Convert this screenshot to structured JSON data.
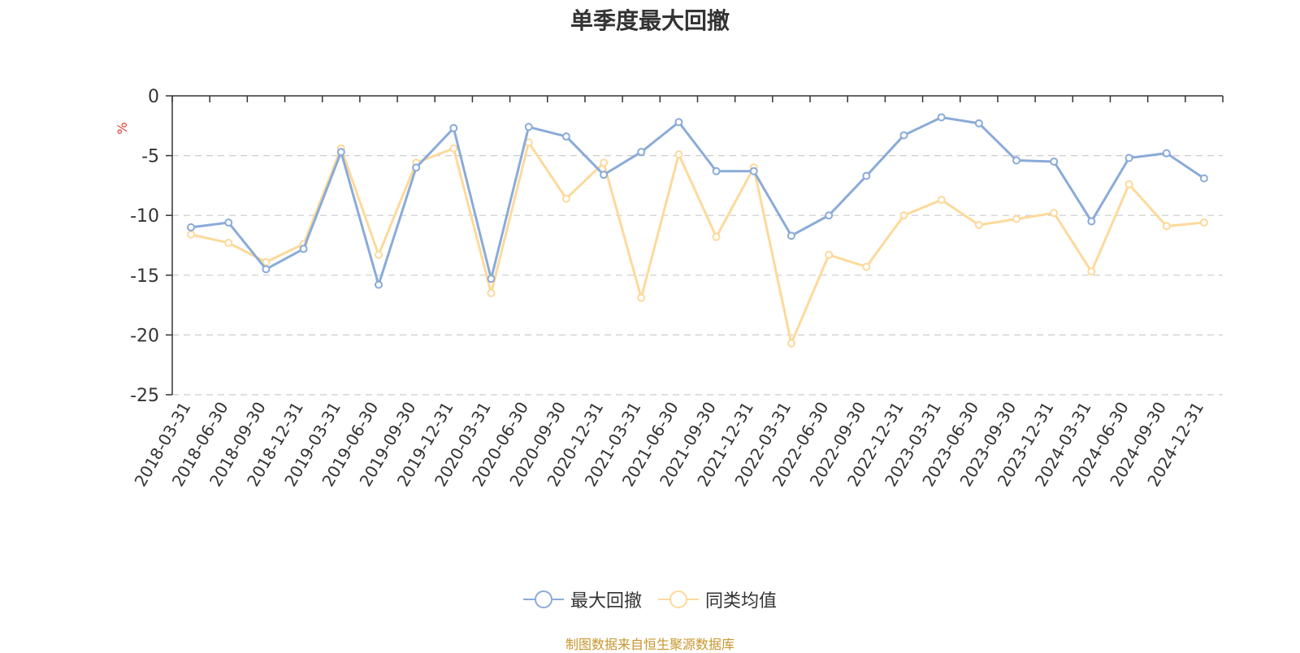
{
  "chart_data": {
    "type": "line",
    "title": "单季度最大回撤",
    "ylabel": "%",
    "xlabel": "",
    "ylim": [
      -25,
      0
    ],
    "yticks": [
      0,
      -5,
      -10,
      -15,
      -20,
      -25
    ],
    "grid": true,
    "legend_position": "bottom",
    "categories": [
      "2018-03-31",
      "2018-06-30",
      "2018-09-30",
      "2018-12-31",
      "2019-03-31",
      "2019-06-30",
      "2019-09-30",
      "2019-12-31",
      "2020-03-31",
      "2020-06-30",
      "2020-09-30",
      "2020-12-31",
      "2021-03-31",
      "2021-06-30",
      "2021-09-30",
      "2021-12-31",
      "2022-03-31",
      "2022-06-30",
      "2022-09-30",
      "2022-12-31",
      "2023-03-31",
      "2023-06-30",
      "2023-09-30",
      "2023-12-31",
      "2024-03-31",
      "2024-06-30",
      "2024-09-30",
      "2024-12-31"
    ],
    "series": [
      {
        "name": "最大回撤",
        "color": "#8aabd8",
        "values": [
          -11.0,
          -10.6,
          -14.5,
          -12.8,
          -4.7,
          -15.8,
          -6.0,
          -2.7,
          -15.3,
          -2.6,
          -3.4,
          -6.6,
          -4.7,
          -2.2,
          -6.3,
          -6.3,
          -11.7,
          -10.0,
          -6.7,
          -3.3,
          -1.8,
          -2.3,
          -5.4,
          -5.5,
          -10.5,
          -5.2,
          -4.8,
          -6.9
        ]
      },
      {
        "name": "同类均值",
        "color": "#fdd99b",
        "values": [
          -11.6,
          -12.3,
          -13.9,
          -12.4,
          -4.4,
          -13.3,
          -5.6,
          -4.4,
          -16.5,
          -3.9,
          -8.6,
          -5.6,
          -16.9,
          -4.9,
          -11.8,
          -6.0,
          -20.7,
          -13.3,
          -14.3,
          -10.0,
          -8.7,
          -10.8,
          -10.3,
          -9.8,
          -14.7,
          -7.4,
          -10.9,
          -10.6
        ]
      }
    ]
  },
  "footer": {
    "source": "制图数据来自恒生聚源数据库",
    "source_color": "#c8962e"
  }
}
